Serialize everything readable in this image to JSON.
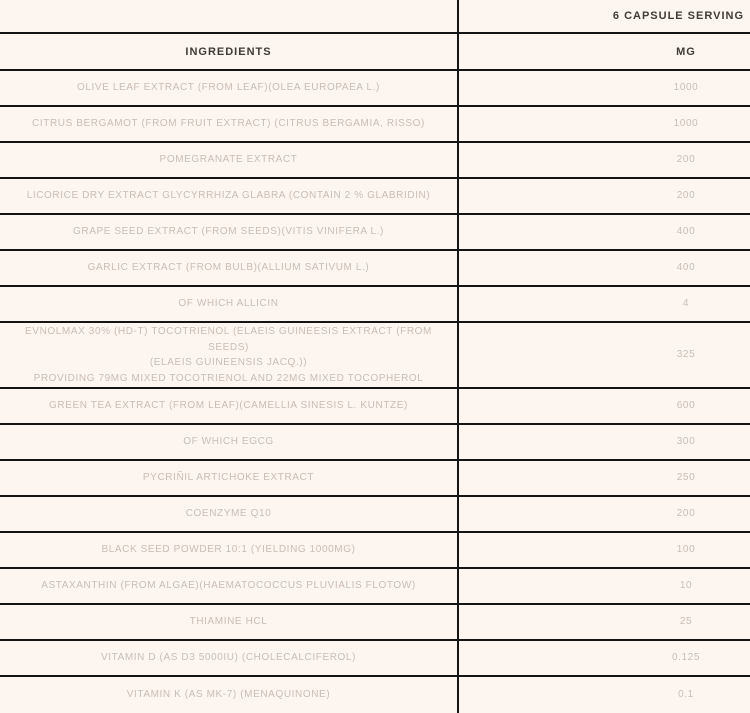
{
  "table": {
    "serving_header": "6 CAPSULE SERVING",
    "columns": [
      "INGREDIENTS",
      "MG"
    ],
    "rows": [
      {
        "ingredient": "OLIVE LEAF EXTRACT (FROM LEAF)(OLEA EUROPAEA L.)",
        "mg": "1000"
      },
      {
        "ingredient": "CITRUS BERGAMOT (FROM FRUIT EXTRACT) (CITRUS BERGAMIA, RISSO)",
        "mg": "1000"
      },
      {
        "ingredient": "POMEGRANATE EXTRACT",
        "mg": "200"
      },
      {
        "ingredient": "LICORICE DRY EXTRACT GLYCYRRHIZA GLABRA (CONTAIN 2 % GLABRIDIN)",
        "mg": "200"
      },
      {
        "ingredient": "GRAPE SEED EXTRACT (FROM SEEDS)(VITIS VINIFERA L.)",
        "mg": "400"
      },
      {
        "ingredient": "GARLIC EXTRACT (FROM BULB)(ALLIUM SATIVUM L.)",
        "mg": "400"
      },
      {
        "ingredient": "OF WHICH ALLICIN",
        "mg": "4"
      },
      {
        "ingredient": "EVNOLMAX 30% (HD-T) TOCOTRIENOL (ELAEIS GUINEESIS EXTRACT (FROM SEEDS)\n(ELAEIS GUINEENSIS JACQ.))\nPROVIDING 79MG MIXED TOCOTRIENOL AND 22MG MIXED TOCOPHEROL",
        "mg": "325"
      },
      {
        "ingredient": "GREEN TEA EXTRACT (FROM LEAF)(CAMELLIA SINESIS L. KUNTZE)",
        "mg": "600"
      },
      {
        "ingredient": "OF WHICH EGCG",
        "mg": "300"
      },
      {
        "ingredient": "PYCRIÑIL ARTICHOKE EXTRACT",
        "mg": "250"
      },
      {
        "ingredient": "COENZYME Q10",
        "mg": "200"
      },
      {
        "ingredient": "BLACK SEED POWDER 10:1 (YIELDING 1000MG)",
        "mg": "100"
      },
      {
        "ingredient": "ASTAXANTHIN (FROM ALGAE)(HAEMATOCOCCUS PLUVIALIS FLOTOW)",
        "mg": "10"
      },
      {
        "ingredient": "THIAMINE HCL",
        "mg": "25"
      },
      {
        "ingredient": "VITAMIN D (AS D3 5000IU) (CHOLECALCIFEROL)",
        "mg": "0.125"
      },
      {
        "ingredient": "VITAMIN K (AS MK-7) (MENAQUINONE)",
        "mg": "0.1"
      }
    ]
  },
  "colors": {
    "background": "#fdf6f0",
    "border": "#141414",
    "header_text": "#3f3b36",
    "row_text": "#c9bdb5"
  }
}
